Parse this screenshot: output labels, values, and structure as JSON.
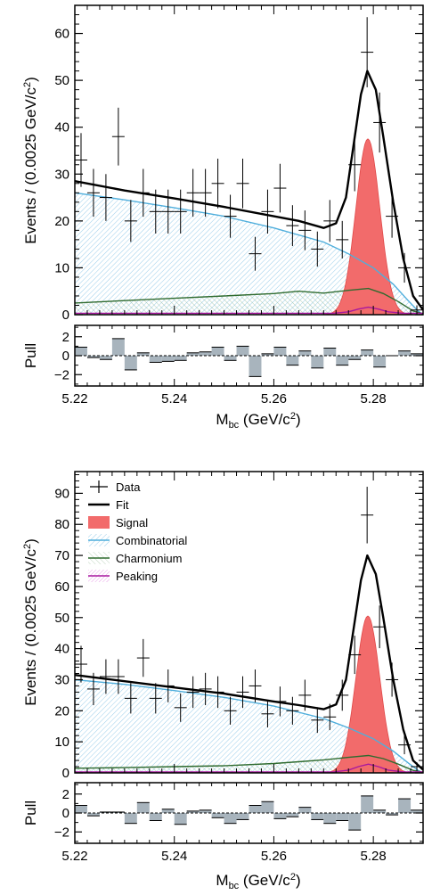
{
  "chart_data": [
    {
      "type": "line",
      "xlabel_main": "M",
      "xlabel_sub": "bc",
      "xlabel_rest": " (GeV/c",
      "xlabel_sup": "2",
      "xlabel_end": ")",
      "ylabel_main": "Events / (0.0025 GeV/c",
      "ylabel_sup": "2",
      "ylabel_end": ")",
      "pull_label": "Pull",
      "xlim": [
        5.22,
        5.29
      ],
      "ylim": [
        0,
        66
      ],
      "pull_ylim": [
        -3.2,
        3.2
      ],
      "x_ticks": [
        "5.22",
        "5.24",
        "5.26",
        "5.28"
      ],
      "y_ticks": [
        "0",
        "10",
        "20",
        "30",
        "40",
        "50",
        "60"
      ],
      "pull_ticks": [
        "2",
        "0",
        "−2"
      ],
      "data": {
        "x": [
          5.22125,
          5.22375,
          5.22625,
          5.22875,
          5.23125,
          5.23375,
          5.23625,
          5.23875,
          5.24125,
          5.24375,
          5.24625,
          5.24875,
          5.25125,
          5.25375,
          5.25625,
          5.25875,
          5.26125,
          5.26375,
          5.26625,
          5.26875,
          5.27125,
          5.27375,
          5.27625,
          5.27875,
          5.28125,
          5.28375,
          5.28625,
          5.28875
        ],
        "y": [
          33,
          26,
          25,
          38,
          20,
          26,
          22,
          22,
          22,
          26,
          26,
          28,
          21,
          28,
          13,
          22,
          27,
          19,
          18,
          14,
          20,
          16,
          32,
          56,
          41,
          21,
          10,
          1
        ]
      },
      "fit": {
        "x": [
          5.22,
          5.23,
          5.24,
          5.25,
          5.26,
          5.265,
          5.27,
          5.2725,
          5.2745,
          5.276,
          5.2775,
          5.2788,
          5.2805,
          5.282,
          5.284,
          5.286,
          5.288,
          5.29
        ],
        "y": [
          28.5,
          26.5,
          24.8,
          23.0,
          21.0,
          20.0,
          18.5,
          19.5,
          25.0,
          36.0,
          47.0,
          52.0,
          48.0,
          38.0,
          24.0,
          12.0,
          4.0,
          1.0
        ]
      },
      "combinatorial": {
        "x": [
          5.22,
          5.23,
          5.24,
          5.25,
          5.26,
          5.27,
          5.275,
          5.28,
          5.284,
          5.287,
          5.289,
          5.29
        ],
        "y": [
          26,
          24.5,
          22.8,
          21.0,
          18.5,
          15.5,
          13.0,
          10.0,
          6.5,
          3.0,
          0.8,
          0
        ]
      },
      "charmonium": {
        "x": [
          5.22,
          5.23,
          5.24,
          5.25,
          5.26,
          5.265,
          5.27,
          5.275,
          5.279,
          5.282,
          5.285,
          5.288,
          5.29
        ],
        "y": [
          2.5,
          3.0,
          3.5,
          4.0,
          4.5,
          5.0,
          4.6,
          5.2,
          5.6,
          4.5,
          2.8,
          0.8,
          0.2
        ]
      },
      "peaking": {
        "x": [
          5.22,
          5.272,
          5.275,
          5.277,
          5.279,
          5.281,
          5.283,
          5.286,
          5.29
        ],
        "y": [
          0.3,
          0.3,
          0.6,
          1.2,
          1.6,
          1.2,
          0.6,
          0.3,
          0.3
        ]
      },
      "signal": {
        "mean": 5.2789,
        "sigma": 0.0024,
        "amplitude": 37.5
      },
      "pulls": [
        0.9,
        -0.2,
        -0.4,
        1.8,
        -1.5,
        0.3,
        -0.7,
        -0.6,
        -0.5,
        0.3,
        0.4,
        0.9,
        -0.5,
        1.0,
        -2.2,
        0.2,
        0.9,
        -1.0,
        0.5,
        -1.3,
        0.8,
        -1.0,
        -0.4,
        0.6,
        -1.2,
        0.0,
        0.5,
        0.2
      ]
    },
    {
      "type": "line",
      "xlabel_main": "M",
      "xlabel_sub": "bc",
      "xlabel_rest": " (GeV/c",
      "xlabel_sup": "2",
      "xlabel_end": ")",
      "ylabel_main": "Events / (0.0025 GeV/c",
      "ylabel_sup": "2",
      "ylabel_end": ")",
      "pull_label": "Pull",
      "xlim": [
        5.22,
        5.29
      ],
      "ylim": [
        0,
        97
      ],
      "pull_ylim": [
        -3.2,
        3.2
      ],
      "x_ticks": [
        "5.22",
        "5.24",
        "5.26",
        "5.28"
      ],
      "y_ticks": [
        "0",
        "10",
        "20",
        "30",
        "40",
        "50",
        "60",
        "70",
        "80",
        "90"
      ],
      "pull_ticks": [
        "2",
        "0",
        "−2"
      ],
      "legend": {
        "placement": "top-left",
        "entries": [
          "Data",
          "Fit",
          "Signal",
          "Combinatorial",
          "Charmonium",
          "Peaking"
        ]
      },
      "data": {
        "x": [
          5.22125,
          5.22375,
          5.22625,
          5.22875,
          5.23125,
          5.23375,
          5.23625,
          5.23875,
          5.24125,
          5.24375,
          5.24625,
          5.24875,
          5.25125,
          5.25375,
          5.25625,
          5.25875,
          5.26125,
          5.26375,
          5.26625,
          5.26875,
          5.27125,
          5.27375,
          5.27625,
          5.27875,
          5.28125,
          5.28375,
          5.28625,
          5.28875
        ],
        "y": [
          35,
          27,
          31,
          31,
          24,
          37,
          24,
          28,
          21,
          26,
          27,
          26,
          20,
          26,
          28,
          19,
          23,
          20,
          25,
          17,
          18,
          25,
          38,
          83,
          47,
          30,
          9,
          2
        ]
      },
      "fit": {
        "x": [
          5.22,
          5.23,
          5.24,
          5.25,
          5.26,
          5.265,
          5.27,
          5.2725,
          5.2745,
          5.276,
          5.2775,
          5.2788,
          5.2805,
          5.282,
          5.284,
          5.286,
          5.288,
          5.29
        ],
        "y": [
          31.5,
          29.5,
          27.5,
          25.5,
          23.0,
          21.8,
          20.5,
          22.0,
          30.0,
          46.0,
          62.0,
          70.0,
          64.0,
          50.0,
          30.0,
          14.0,
          4.0,
          1.0
        ]
      },
      "combinatorial": {
        "x": [
          5.22,
          5.23,
          5.24,
          5.25,
          5.26,
          5.27,
          5.275,
          5.28,
          5.284,
          5.287,
          5.289,
          5.29
        ],
        "y": [
          30,
          28.5,
          26.5,
          24.3,
          21.5,
          17.5,
          14.5,
          11.0,
          7.0,
          3.2,
          0.8,
          0
        ]
      },
      "charmonium": {
        "x": [
          5.22,
          5.23,
          5.24,
          5.25,
          5.26,
          5.265,
          5.27,
          5.275,
          5.279,
          5.282,
          5.285,
          5.288,
          5.29
        ],
        "y": [
          1.5,
          1.7,
          2.0,
          2.3,
          3.0,
          3.6,
          4.2,
          5.0,
          5.6,
          4.6,
          2.8,
          0.8,
          0.2
        ]
      },
      "peaking": {
        "x": [
          5.22,
          5.272,
          5.275,
          5.277,
          5.279,
          5.281,
          5.283,
          5.286,
          5.29
        ],
        "y": [
          0.3,
          0.3,
          0.9,
          2.0,
          2.8,
          2.0,
          0.9,
          0.3,
          0.3
        ]
      },
      "signal": {
        "mean": 5.2789,
        "sigma": 0.0024,
        "amplitude": 50.5
      },
      "pulls": [
        0.8,
        -0.3,
        0.1,
        0.1,
        -1.1,
        1.1,
        -0.8,
        0.4,
        -1.2,
        0.2,
        0.3,
        -0.5,
        -1.1,
        -0.7,
        0.8,
        1.2,
        -0.6,
        -0.4,
        0.6,
        -0.7,
        -1.1,
        -0.8,
        -1.8,
        1.8,
        0.3,
        -0.2,
        1.5,
        0.3
      ]
    }
  ]
}
